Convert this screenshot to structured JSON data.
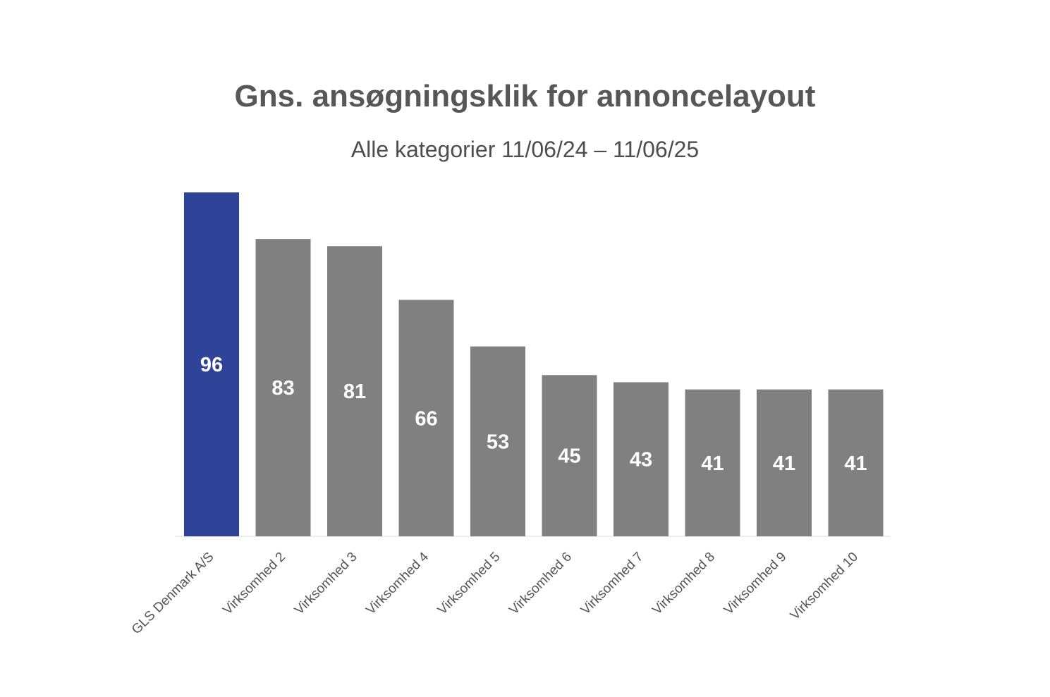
{
  "chart_data": {
    "type": "bar",
    "title": "Gns. ansøgningsklik for annoncelayout",
    "subtitle": "Alle kategorier 11/06/24 – 11/06/25",
    "categories": [
      "GLS Denmark A/S",
      "Virksomhed 2",
      "Virksomhed 3",
      "Virksomhed 4",
      "Virksomhed 5",
      "Virksomhed 6",
      "Virksomhed 7",
      "Virksomhed 8",
      "Virksomhed 9",
      "Virksomhed 10"
    ],
    "values": [
      96,
      83,
      81,
      66,
      53,
      45,
      43,
      41,
      41,
      41
    ],
    "data_labels": [
      "96",
      "83",
      "81",
      "66",
      "53",
      "45",
      "43",
      "41",
      "41",
      "41"
    ],
    "ylim": [
      0,
      96
    ],
    "grid": false,
    "legend": "none",
    "colors": {
      "highlight": "#2f4399",
      "default": "#808080",
      "axis": "#e6e6e6"
    }
  }
}
